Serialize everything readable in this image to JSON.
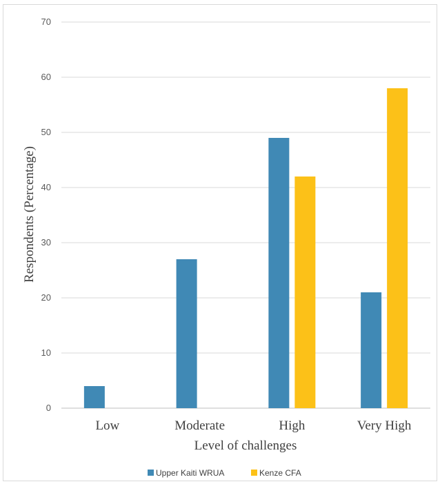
{
  "chart_data": {
    "type": "bar",
    "categories": [
      "Low",
      "Moderate",
      "High",
      "Very High"
    ],
    "series": [
      {
        "name": "Upper Kaiti WRUA",
        "values": [
          4,
          27,
          49,
          21
        ],
        "color": "#4089b5"
      },
      {
        "name": "Kenze CFA",
        "values": [
          0,
          0,
          42,
          58
        ],
        "color": "#fcc118"
      }
    ],
    "xlabel": "Level of challenges",
    "ylabel": "Respondents (Percentage)",
    "ylim": [
      0,
      70
    ],
    "yticks": [
      0,
      10,
      20,
      30,
      40,
      50,
      60,
      70
    ],
    "grid": true,
    "legend_position": "bottom"
  }
}
